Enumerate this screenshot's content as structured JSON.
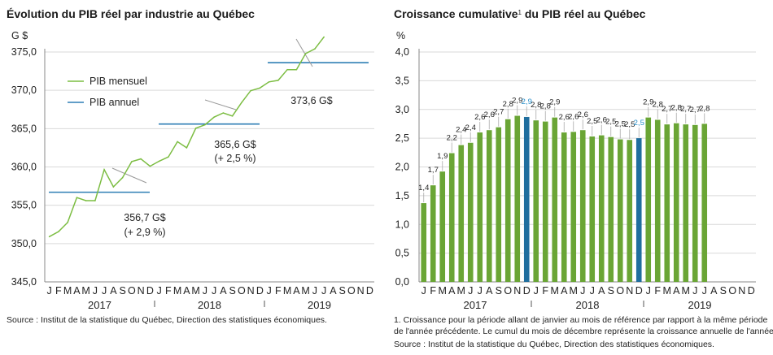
{
  "chart_data": [
    {
      "type": "line",
      "title": "Évolution du PIB réel par industrie au Québec",
      "ylabel": "G $",
      "ylim": [
        345,
        375
      ],
      "yticks": [
        "345,0",
        "350,0",
        "355,0",
        "360,0",
        "365,0",
        "370,0",
        "375,0"
      ],
      "ytick_values": [
        345,
        350,
        355,
        360,
        365,
        370,
        375
      ],
      "months": [
        "J",
        "F",
        "M",
        "A",
        "M",
        "J",
        "J",
        "A",
        "S",
        "O",
        "N",
        "D"
      ],
      "years": [
        "2017",
        "2018",
        "2019"
      ],
      "grid": true,
      "legend": {
        "placement": "top-left",
        "entries": [
          "PIB mensuel",
          "PIB annuel"
        ]
      },
      "series": [
        {
          "name": "PIB mensuel",
          "color": "#7cbd42",
          "values": [
            350.9,
            351.55,
            352.75,
            356.0,
            355.6,
            355.6,
            359.65,
            357.4,
            358.6,
            360.7,
            361.05,
            360.1,
            360.75,
            361.3,
            363.3,
            362.5,
            365.05,
            365.5,
            366.5,
            367.05,
            366.65,
            368.4,
            369.95,
            370.3,
            371.1,
            371.3,
            372.7,
            372.7,
            374.8,
            375.4,
            376.95
          ]
        },
        {
          "name": "PIB annuel",
          "color": "#2f7fb5",
          "values": [
            356.7,
            365.6,
            373.6
          ]
        }
      ],
      "annotations": [
        {
          "line1": "356,7 G$",
          "line2": "(+ 2,9 %)"
        },
        {
          "line1": "365,6 G$",
          "line2": "(+ 2,5 %)"
        },
        {
          "line1": "373,6 G$",
          "line2": ""
        }
      ],
      "source": "Source : Institut de la statistique du Québec, Direction des statistiques économiques."
    },
    {
      "type": "bar",
      "title": "Croissance cumulative",
      "title_sup": "1",
      "title_rest": " du PIB réel au Québec",
      "ylabel": "%",
      "ylim": [
        0,
        4
      ],
      "yticks": [
        "0,0",
        "0,5",
        "1,0",
        "1,5",
        "2,0",
        "2,5",
        "3,0",
        "3,5",
        "4,0"
      ],
      "ytick_values": [
        0,
        0.5,
        1,
        1.5,
        2,
        2.5,
        3,
        3.5,
        4
      ],
      "months": [
        "J",
        "F",
        "M",
        "A",
        "M",
        "J",
        "J",
        "A",
        "S",
        "O",
        "N",
        "D"
      ],
      "years": [
        "2017",
        "2018",
        "2019"
      ],
      "grid": true,
      "bar_color": "#6aa535",
      "highlight_color": "#1f6e9e",
      "highlight_label_color": "#2a8fc9",
      "highlight_indices": [
        11,
        23
      ],
      "values": [
        1.37,
        1.68,
        1.92,
        2.24,
        2.38,
        2.42,
        2.6,
        2.64,
        2.69,
        2.83,
        2.89,
        2.87,
        2.81,
        2.79,
        2.86,
        2.6,
        2.61,
        2.64,
        2.53,
        2.55,
        2.52,
        2.48,
        2.47,
        2.5,
        2.86,
        2.82,
        2.74,
        2.76,
        2.74,
        2.73,
        2.75
      ],
      "labels": [
        "1,4",
        "1,7",
        "1,9",
        "2,2",
        "2,4",
        "2,4",
        "2,6",
        "2,6",
        "2,7",
        "2,8",
        "2,9",
        "2,9",
        "2,8",
        "2,8",
        "2,9",
        "2,6",
        "2,6",
        "2,6",
        "2,5",
        "2,6",
        "2,5",
        "2,5",
        "2,5",
        "2,5",
        "2,9",
        "2,8",
        "2,7",
        "2,8",
        "2,7",
        "2,7",
        "2,8"
      ],
      "footnote_line1": "1. Croissance pour la période allant de janvier au mois de référence par rapport à la même période",
      "footnote_line2": "de l'année précédente. Le cumul du mois de décembre représente la croissance annuelle de l'année.",
      "source": "Source : Institut de la statistique du Québec, Direction des statistiques économiques."
    }
  ]
}
